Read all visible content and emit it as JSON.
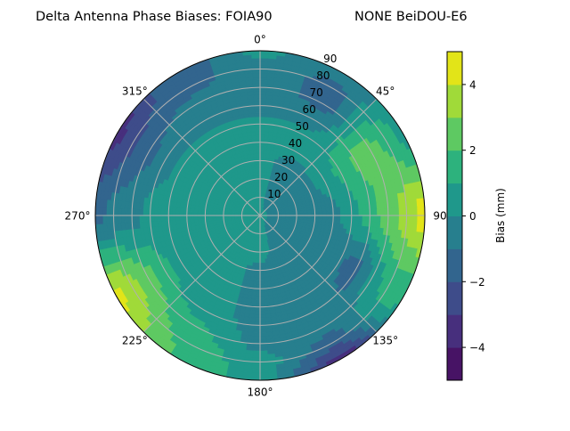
{
  "chart_data": {
    "type": "heatmap",
    "subtype": "polar filled contour",
    "title_left": "Delta Antenna Phase Biases: FOIA90",
    "title_right": "NONE BeiDOU-E6",
    "angular_axis": {
      "zero_location": "top",
      "direction": "clockwise",
      "tick_labels": [
        "0°",
        "45°",
        "90°",
        "135°",
        "180°",
        "225°",
        "270°",
        "315°"
      ],
      "tick_values": [
        0,
        45,
        90,
        135,
        180,
        225,
        270,
        315
      ]
    },
    "radial_axis": {
      "range": [
        0,
        90
      ],
      "tick_values": [
        10,
        20,
        30,
        40,
        50,
        60,
        70,
        80,
        90
      ],
      "tick_labels": [
        "10",
        "20",
        "30",
        "40",
        "50",
        "60",
        "70",
        "80",
        "90"
      ]
    },
    "grid": true,
    "colorbar": {
      "label": "Bias (mm)",
      "range": [
        -5,
        5
      ],
      "levels": [
        -5,
        -4,
        -3,
        -2,
        -1,
        0,
        1,
        2,
        3,
        4,
        5
      ],
      "tick_values": [
        -4,
        -2,
        0,
        2,
        4
      ],
      "tick_labels": [
        "−4",
        "−2",
        "0",
        "2",
        "4"
      ],
      "colormap": "viridis",
      "colors": [
        "#471365",
        "#472f7d",
        "#3e4c8a",
        "#32658e",
        "#277f8e",
        "#1f988b",
        "#2db27d",
        "#5ec962",
        "#a0da39",
        "#e2e418"
      ],
      "placement": "right"
    },
    "field": {
      "azimuth_deg": [
        0,
        30,
        60,
        90,
        120,
        150,
        180,
        210,
        240,
        270,
        300,
        330
      ],
      "radius": [
        0,
        10,
        20,
        30,
        40,
        50,
        60,
        70,
        80,
        90
      ],
      "values_mm": [
        [
          0.3,
          0.3,
          0.3,
          0.3,
          0.3,
          0.3,
          -0.5,
          -0.6,
          -0.5,
          0.3
        ],
        [
          0.2,
          -0.3,
          -0.4,
          -0.4,
          0.3,
          0.3,
          -0.5,
          -1.3,
          -1.3,
          -0.5
        ],
        [
          0.2,
          -0.3,
          -0.5,
          -0.3,
          0.4,
          1.3,
          2.2,
          2.3,
          1.8,
          0.6
        ],
        [
          0.2,
          -0.3,
          -0.5,
          -0.4,
          -0.3,
          0.5,
          1.5,
          2.5,
          3.5,
          4.5
        ],
        [
          0.2,
          -0.3,
          -0.5,
          -0.6,
          -0.7,
          -0.9,
          -1.4,
          0.3,
          1.5,
          1.2
        ],
        [
          0.2,
          -0.2,
          -0.5,
          -0.6,
          -0.6,
          -0.7,
          -0.6,
          -0.6,
          -1.5,
          -3.5
        ],
        [
          0.3,
          0.4,
          0.4,
          -0.3,
          -0.5,
          -0.5,
          -0.4,
          -0.3,
          0.4,
          0.3
        ],
        [
          0.3,
          0.4,
          0.4,
          0.3,
          0.4,
          0.5,
          0.6,
          1.2,
          1.8,
          2.0
        ],
        [
          0.3,
          0.4,
          0.4,
          0.5,
          0.5,
          0.6,
          1.3,
          2.5,
          3.5,
          4.3
        ],
        [
          0.3,
          0.4,
          0.4,
          0.5,
          0.5,
          0.5,
          0.4,
          -0.4,
          -0.6,
          -1.4
        ],
        [
          0.3,
          0.4,
          0.4,
          0.4,
          0.4,
          0.3,
          -0.5,
          -1.3,
          -2.3,
          -3.4
        ],
        [
          0.3,
          0.4,
          0.4,
          0.4,
          0.4,
          0.3,
          -0.5,
          -0.7,
          -1.3,
          -1.5
        ]
      ]
    }
  }
}
